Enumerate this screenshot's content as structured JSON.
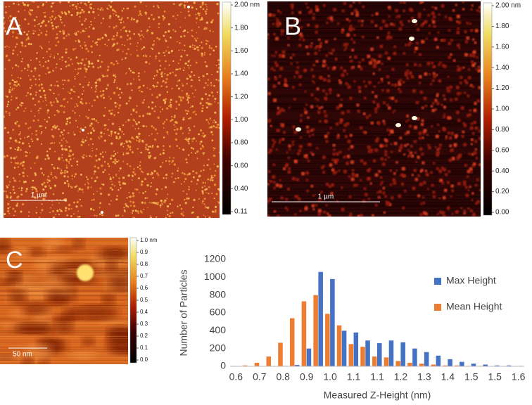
{
  "panels": [
    {
      "letter": "A",
      "scale_bar": "1 µm",
      "colorbar": [
        "2.00 nm",
        "1.80",
        "1.60",
        "1.40",
        "1.20",
        "1.00",
        "0.80",
        "0.60",
        "0.40",
        "0.11"
      ]
    },
    {
      "letter": "B",
      "scale_bar": "1 µm",
      "colorbar": [
        "2.00 nm",
        "1.80",
        "1.60",
        "1.40",
        "1.20",
        "1.00",
        "0.80",
        "0.60",
        "0.40",
        "0.20",
        "0.00"
      ]
    },
    {
      "letter": "C",
      "scale_bar": "50 nm",
      "colorbar": [
        "1.0 nm",
        "0.9",
        "0.8",
        "0.7",
        "0.6",
        "0.5",
        "0.4",
        "0.3",
        "0.2",
        "0.1",
        "0.0"
      ]
    }
  ],
  "chart_data": {
    "type": "bar",
    "x_label": "Measured Z-Height (nm)",
    "y_label": "Number of Particles",
    "categories": [
      "0.6",
      null,
      "0.7",
      null,
      "0.8",
      null,
      "0.9",
      null,
      "1.0",
      null,
      "1.1",
      null,
      "1.1",
      null,
      "1.2",
      null,
      "1.3",
      null,
      "1.4",
      null,
      "1.5",
      null,
      "1.5",
      null,
      "1.6"
    ],
    "series": [
      {
        "name": "Max Height",
        "color": "#4472c4",
        "values": [
          0,
          0,
          0,
          0,
          5,
          15,
          200,
          1060,
          980,
          400,
          380,
          290,
          260,
          290,
          270,
          200,
          160,
          120,
          80,
          50,
          30,
          20,
          10,
          10,
          5
        ]
      },
      {
        "name": "Mean Height",
        "color": "#ed7d31",
        "values": [
          5,
          10,
          40,
          110,
          265,
          540,
          730,
          800,
          590,
          460,
          250,
          220,
          110,
          100,
          60,
          40,
          30,
          20,
          10,
          10,
          5,
          5,
          2,
          0,
          0
        ]
      }
    ],
    "ylim": [
      0,
      1200
    ],
    "yticks": [
      0,
      200,
      400,
      600,
      800,
      1000,
      1200
    ],
    "legend": "right",
    "grid": false
  }
}
